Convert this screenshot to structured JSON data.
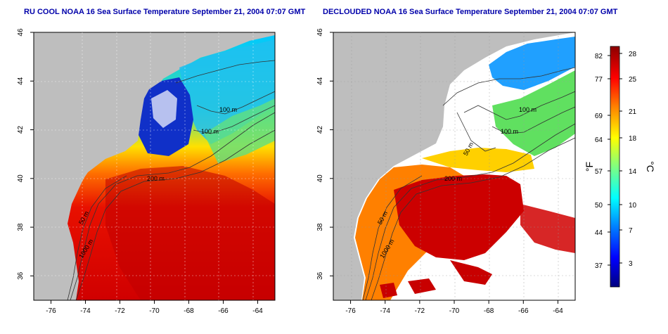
{
  "maps": {
    "left": {
      "title": "RU COOL NOAA 16 Sea Surface Temperature September 21, 2004 07:07 GMT",
      "contour_labels": [
        "100 m",
        "100 m",
        "200 m",
        "50 m",
        "1000 m"
      ]
    },
    "right": {
      "title": "DECLOUDED NOAA 16 Sea Surface Temperature September 21, 2004 07:07 GMT",
      "contour_labels": [
        "100 m",
        "100 m",
        "200 m",
        "50 m",
        "50 m",
        "1000 m"
      ]
    },
    "lon_ticks": [
      "-76",
      "-74",
      "-72",
      "-70",
      "-68",
      "-66",
      "-64"
    ],
    "lat_ticks": [
      "36",
      "38",
      "40",
      "42",
      "44",
      "46"
    ]
  },
  "colorbar": {
    "fahrenheit_unit": "°F",
    "celsius_unit": "°C",
    "fahrenheit_ticks": [
      "37",
      "44",
      "50",
      "57",
      "64",
      "69",
      "77",
      "82"
    ],
    "celsius_ticks": [
      "3",
      "7",
      "10",
      "14",
      "18",
      "21",
      "25",
      "28"
    ]
  },
  "colors": {
    "land": "#bebebe",
    "cloud": "#ffffff",
    "title": "#0000aa",
    "scale": [
      "#00007f",
      "#0000ff",
      "#0080ff",
      "#00ffff",
      "#80ff80",
      "#ffff00",
      "#ff8000",
      "#ff0000",
      "#8b0000"
    ]
  }
}
